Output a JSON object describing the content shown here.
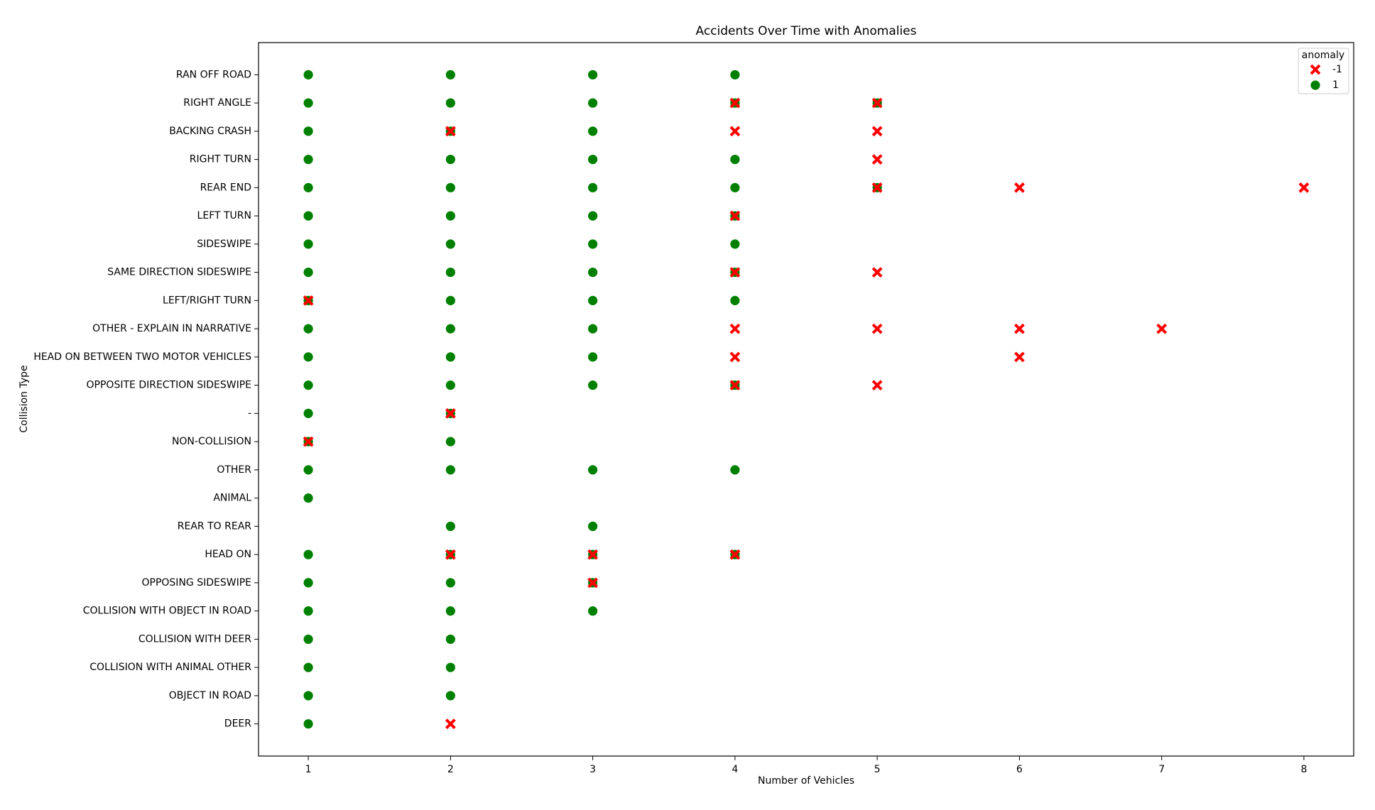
{
  "chart_data": {
    "type": "scatter",
    "title": "Accidents Over Time with Anomalies",
    "x_label": "Number of Vehicles",
    "y_label": "Collision Type",
    "legend_title": "anomaly",
    "legend_position": "upper right",
    "categories": [
      "RAN OFF ROAD",
      "RIGHT ANGLE",
      "BACKING CRASH",
      "RIGHT TURN",
      "REAR END",
      "LEFT TURN",
      "SIDESWIPE",
      "SAME DIRECTION SIDESWIPE",
      "LEFT/RIGHT TURN",
      "OTHER - EXPLAIN IN NARRATIVE",
      "HEAD ON BETWEEN TWO MOTOR VEHICLES",
      "OPPOSITE DIRECTION SIDESWIPE",
      "-",
      "NON-COLLISION",
      "OTHER",
      "ANIMAL",
      "REAR TO REAR",
      "HEAD ON",
      "OPPOSING SIDESWIPE",
      "COLLISION WITH OBJECT IN ROAD",
      "COLLISION WITH DEER",
      "COLLISION WITH ANIMAL OTHER",
      "OBJECT IN ROAD",
      "DEER"
    ],
    "xlim": [
      0.65,
      8.35
    ],
    "xticks": [
      1,
      2,
      3,
      4,
      5,
      6,
      7,
      8
    ],
    "grid": false,
    "series": [
      {
        "name": "-1",
        "color": "#ff0000",
        "marker": "x",
        "x": [
          4,
          5,
          2,
          4,
          5,
          5,
          5,
          6,
          8,
          4,
          4,
          5,
          1,
          4,
          5,
          6,
          7,
          4,
          6,
          4,
          5,
          2,
          1,
          2,
          3,
          4,
          3,
          2
        ],
        "y": [
          "RIGHT ANGLE",
          "RIGHT ANGLE",
          "BACKING CRASH",
          "BACKING CRASH",
          "BACKING CRASH",
          "RIGHT TURN",
          "REAR END",
          "REAR END",
          "REAR END",
          "LEFT TURN",
          "SAME DIRECTION SIDESWIPE",
          "SAME DIRECTION SIDESWIPE",
          "LEFT/RIGHT TURN",
          "OTHER - EXPLAIN IN NARRATIVE",
          "OTHER - EXPLAIN IN NARRATIVE",
          "OTHER - EXPLAIN IN NARRATIVE",
          "OTHER - EXPLAIN IN NARRATIVE",
          "HEAD ON BETWEEN TWO MOTOR VEHICLES",
          "HEAD ON BETWEEN TWO MOTOR VEHICLES",
          "OPPOSITE DIRECTION SIDESWIPE",
          "OPPOSITE DIRECTION SIDESWIPE",
          "-",
          "NON-COLLISION",
          "HEAD ON",
          "HEAD ON",
          "HEAD ON",
          "OPPOSING SIDESWIPE",
          "DEER"
        ]
      },
      {
        "name": "1",
        "color": "#008000",
        "marker": "o",
        "x": [
          1,
          2,
          3,
          4,
          1,
          2,
          3,
          4,
          5,
          1,
          2,
          3,
          1,
          2,
          3,
          4,
          1,
          2,
          3,
          4,
          5,
          1,
          2,
          3,
          4,
          1,
          2,
          3,
          4,
          1,
          2,
          3,
          4,
          1,
          2,
          3,
          4,
          1,
          2,
          3,
          1,
          2,
          3,
          1,
          2,
          3,
          4,
          1,
          2,
          1,
          2,
          1,
          2,
          3,
          4,
          1,
          2,
          3,
          1,
          2,
          3,
          4,
          1,
          2,
          3,
          1,
          2,
          3,
          1,
          2,
          1,
          2,
          1,
          2,
          1
        ],
        "y": [
          "RAN OFF ROAD",
          "RAN OFF ROAD",
          "RAN OFF ROAD",
          "RAN OFF ROAD",
          "RIGHT ANGLE",
          "RIGHT ANGLE",
          "RIGHT ANGLE",
          "RIGHT ANGLE",
          "RIGHT ANGLE",
          "BACKING CRASH",
          "BACKING CRASH",
          "BACKING CRASH",
          "RIGHT TURN",
          "RIGHT TURN",
          "RIGHT TURN",
          "RIGHT TURN",
          "REAR END",
          "REAR END",
          "REAR END",
          "REAR END",
          "REAR END",
          "LEFT TURN",
          "LEFT TURN",
          "LEFT TURN",
          "LEFT TURN",
          "SIDESWIPE",
          "SIDESWIPE",
          "SIDESWIPE",
          "SIDESWIPE",
          "SAME DIRECTION SIDESWIPE",
          "SAME DIRECTION SIDESWIPE",
          "SAME DIRECTION SIDESWIPE",
          "SAME DIRECTION SIDESWIPE",
          "LEFT/RIGHT TURN",
          "LEFT/RIGHT TURN",
          "LEFT/RIGHT TURN",
          "LEFT/RIGHT TURN",
          "OTHER - EXPLAIN IN NARRATIVE",
          "OTHER - EXPLAIN IN NARRATIVE",
          "OTHER - EXPLAIN IN NARRATIVE",
          "HEAD ON BETWEEN TWO MOTOR VEHICLES",
          "HEAD ON BETWEEN TWO MOTOR VEHICLES",
          "HEAD ON BETWEEN TWO MOTOR VEHICLES",
          "OPPOSITE DIRECTION SIDESWIPE",
          "OPPOSITE DIRECTION SIDESWIPE",
          "OPPOSITE DIRECTION SIDESWIPE",
          "OPPOSITE DIRECTION SIDESWIPE",
          "-",
          "-",
          "NON-COLLISION",
          "NON-COLLISION",
          "OTHER",
          "OTHER",
          "OTHER",
          "OTHER",
          "ANIMAL",
          "REAR TO REAR",
          "REAR TO REAR",
          "HEAD ON",
          "HEAD ON",
          "HEAD ON",
          "HEAD ON",
          "OPPOSING SIDESWIPE",
          "OPPOSING SIDESWIPE",
          "OPPOSING SIDESWIPE",
          "COLLISION WITH OBJECT IN ROAD",
          "COLLISION WITH OBJECT IN ROAD",
          "COLLISION WITH OBJECT IN ROAD",
          "COLLISION WITH DEER",
          "COLLISION WITH DEER",
          "COLLISION WITH ANIMAL OTHER",
          "COLLISION WITH ANIMAL OTHER",
          "OBJECT IN ROAD",
          "OBJECT IN ROAD",
          "DEER"
        ]
      }
    ]
  }
}
